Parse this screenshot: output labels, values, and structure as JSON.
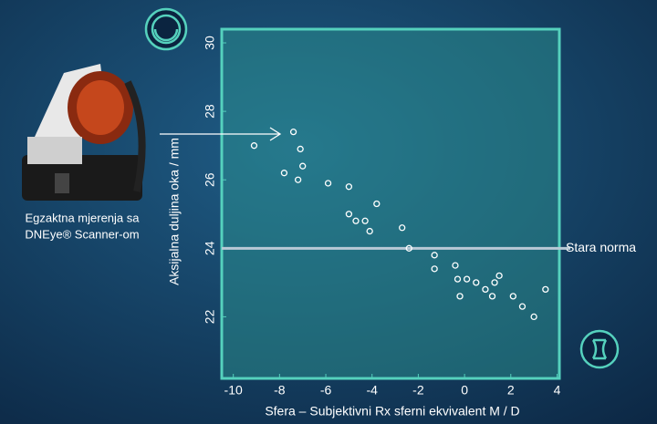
{
  "chart_data": {
    "type": "scatter",
    "xlabel": "Sfera – Subjektivni Rx sferni ekvivalent M / D",
    "ylabel": "Aksijalna duljina oka / mm",
    "x": [
      -9.1,
      -7.4,
      -7.1,
      -7.0,
      -7.8,
      -7.2,
      -5.9,
      -5.0,
      -3.8,
      -5.0,
      -4.7,
      -4.3,
      -2.7,
      -4.1,
      -2.4,
      -1.3,
      -1.3,
      -0.4,
      -0.3,
      0.1,
      0.5,
      0.9,
      1.3,
      1.5,
      1.2,
      -0.2,
      2.1,
      2.5,
      3.0,
      3.5
    ],
    "values": [
      27.0,
      27.4,
      26.9,
      26.4,
      26.2,
      26.0,
      25.9,
      25.8,
      25.3,
      25.0,
      24.8,
      24.8,
      24.6,
      24.5,
      24.0,
      23.8,
      23.4,
      23.5,
      23.1,
      23.1,
      23.0,
      22.8,
      23.0,
      23.2,
      22.6,
      22.6,
      22.6,
      22.3,
      22.0,
      22.8
    ],
    "color": "#ffffff",
    "xlim": [
      -10.5,
      4.1
    ],
    "ylim": [
      20.2,
      30.4
    ],
    "xticks": [
      -10,
      -8,
      -6,
      -4,
      -2,
      0,
      2,
      4
    ],
    "yticks": [
      22,
      24,
      26,
      28,
      30
    ],
    "reference_line": {
      "value": 24,
      "label": "Stara norma",
      "color": "#b9c9d6"
    },
    "caption": [
      "Egzaktna mjerenja sa",
      "DNEye® Scanner-om"
    ]
  }
}
